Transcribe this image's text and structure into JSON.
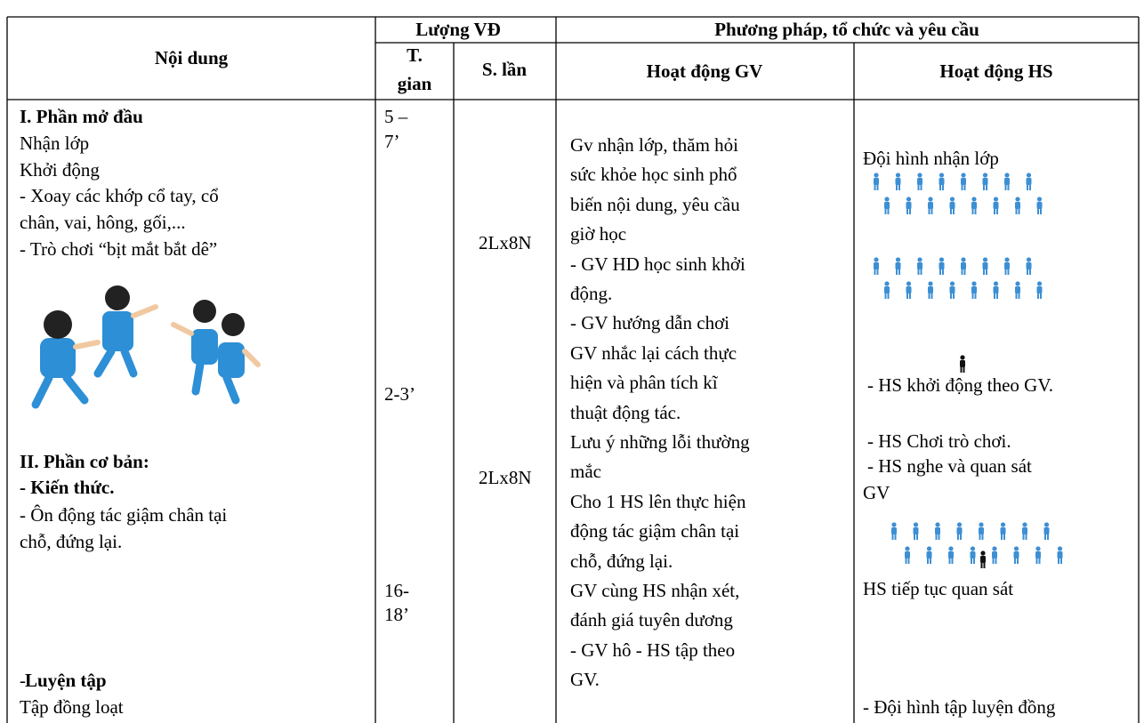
{
  "header": {
    "content": "Nội dung",
    "quantity": "Lượng VĐ",
    "method": "Phương pháp, tổ chức và yêu cầu",
    "time": [
      "T.",
      "gian"
    ],
    "reps": "S. lần",
    "teacher": "Hoạt động GV",
    "student": "Hoạt động HS"
  },
  "content": [
    "I. Phần mở đầu",
    "Nhận lớp",
    "Khởi động",
    "- Xoay các khớp cổ tay, cổ",
    "chân, vai, hông, gối,...",
    "- Trò chơi “bịt mắt bắt dê”",
    "II. Phần cơ bản:",
    "- Kiến thức.",
    "- Ôn động tác giậm chân tại",
    "chỗ, đứng lại.",
    "-",
    "Luyện tập",
    "Tập đồng loạt"
  ],
  "time": [
    "5 –",
    "7’",
    "2-3’",
    "16-",
    "18’"
  ],
  "reps": [
    "2Lx8N",
    "2Lx8N"
  ],
  "teacher": [
    "Gv nhận lớp, thăm hỏi",
    "sức khỏe học sinh phổ",
    "biến nội dung, yêu cầu",
    "giờ học",
    "- GV HD học sinh khởi",
    "động.",
    "- GV hướng dẫn chơi",
    "GV nhắc lại cách thực",
    "hiện và phân tích kĩ",
    "thuật động tác.",
    "Lưu ý những lỗi thường",
    "mắc",
    "Cho 1 HS lên thực hiện",
    "động tác giậm chân tại",
    "chỗ, đứng lại.",
    "GV cùng HS nhận xét,",
    "đánh giá tuyên dương",
    "- GV hô - HS tập theo",
    "GV."
  ],
  "student": [
    "Đội hình nhận lớp",
    "- HS khởi động theo GV.",
    "- HS Chơi trò chơi.",
    "- HS nghe và quan sát",
    "GV",
    "HS tiếp tục quan sát",
    "- Đội hình tập luyện đồng"
  ]
}
